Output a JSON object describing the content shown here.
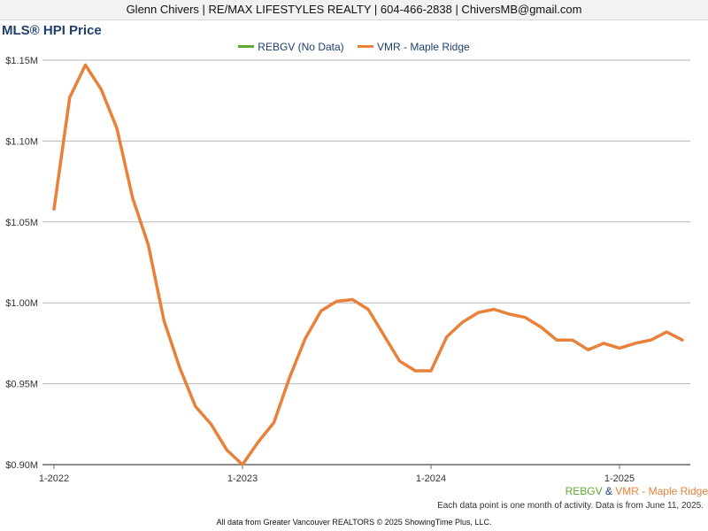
{
  "header": {
    "contact_line": "Glenn Chivers | RE/MAX LIFESTYLES REALTY | 604-466-2838 | ChiversMB@gmail.com"
  },
  "colors": {
    "rebgv": "#5aab2e",
    "vmr": "#e8813a",
    "title": "#1f3f6e"
  },
  "chart_data": {
    "type": "line",
    "title": "MLS® HPI Price",
    "xlabel": "",
    "ylabel": "",
    "x_ticks": [
      "1-2022",
      "1-2023",
      "1-2024",
      "1-2025"
    ],
    "y_ticks": [
      "$1.15M",
      "$1.10M",
      "$1.05M",
      "$1.00M",
      "$0.95M",
      "$0.90M"
    ],
    "ylim": [
      0.9,
      1.15
    ],
    "grid": true,
    "legend_position": "top-center",
    "series": [
      {
        "name": "REBGV (No Data)",
        "color": "#5aab2e",
        "x": [],
        "values": []
      },
      {
        "name": "VMR - Maple Ridge",
        "color": "#e8813a",
        "x": [
          "2022-01",
          "2022-02",
          "2022-03",
          "2022-04",
          "2022-05",
          "2022-06",
          "2022-07",
          "2022-08",
          "2022-09",
          "2022-10",
          "2022-11",
          "2022-12",
          "2023-01",
          "2023-02",
          "2023-03",
          "2023-04",
          "2023-05",
          "2023-06",
          "2023-07",
          "2023-08",
          "2023-09",
          "2023-10",
          "2023-11",
          "2023-12",
          "2024-01",
          "2024-02",
          "2024-03",
          "2024-04",
          "2024-05",
          "2024-06",
          "2024-07",
          "2024-08",
          "2024-09",
          "2024-10",
          "2024-11",
          "2024-12",
          "2025-01",
          "2025-02",
          "2025-03",
          "2025-04",
          "2025-05"
        ],
        "values": [
          1.058,
          1.127,
          1.147,
          1.132,
          1.108,
          1.065,
          1.036,
          0.989,
          0.96,
          0.936,
          0.925,
          0.909,
          0.9,
          0.914,
          0.926,
          0.954,
          0.978,
          0.995,
          1.001,
          1.002,
          0.996,
          0.98,
          0.964,
          0.958,
          0.958,
          0.979,
          0.988,
          0.994,
          0.996,
          0.993,
          0.991,
          0.985,
          0.977,
          0.977,
          0.971,
          0.975,
          0.972,
          0.975,
          0.977,
          0.982,
          0.977
        ]
      }
    ]
  },
  "footer": {
    "legend_rebgv": "REBGV",
    "legend_amp": "&",
    "legend_vmr": "VMR - Maple Ridge",
    "note": "Each data point is one month of activity. Data is from June 11, 2025.",
    "source": "All data from Greater Vancouver REALTORS © 2025 ShowingTime Plus, LLC."
  }
}
